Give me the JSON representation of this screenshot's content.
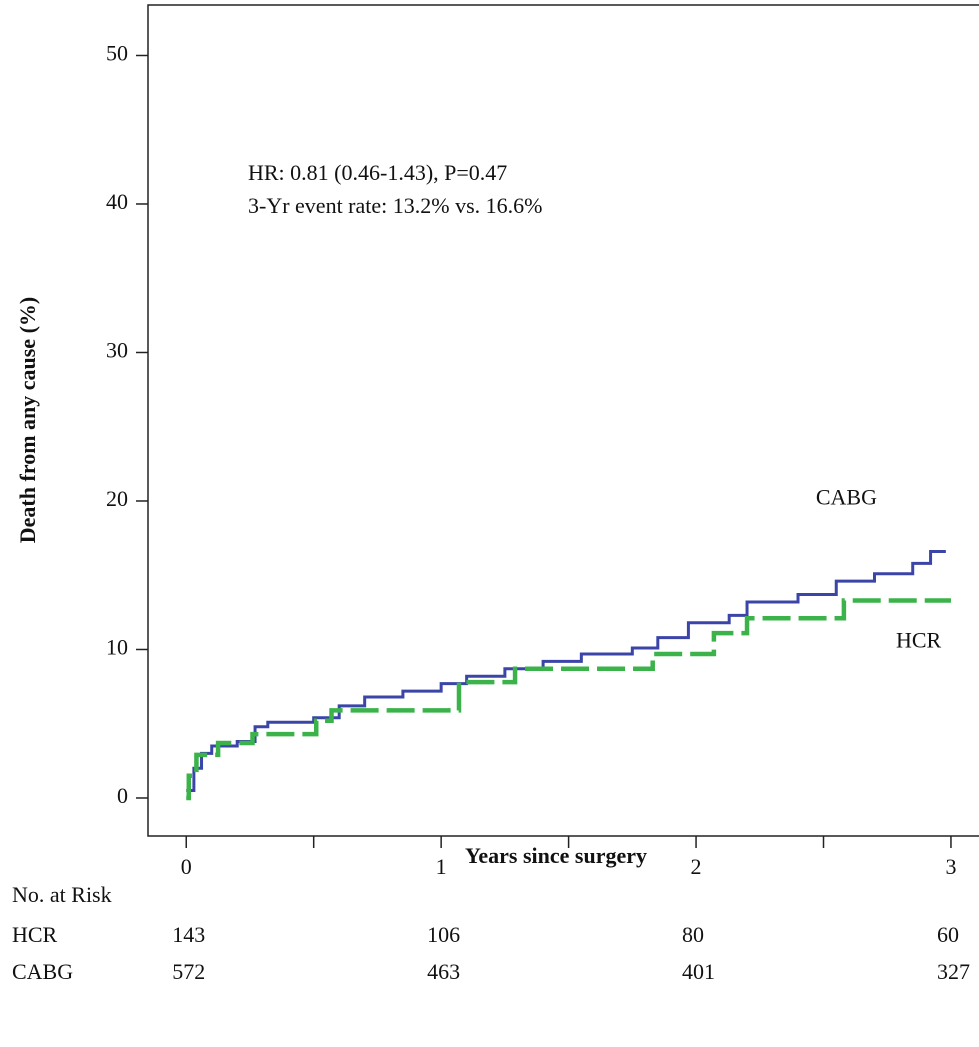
{
  "chart_data": {
    "type": "step",
    "y_label": "Death from any cause (%)",
    "x_label": "Years since surgery",
    "annotations": [
      "HR: 0.81 (0.46-1.43), P=0.47",
      "3-Yr event rate: 13.2% vs. 16.6%"
    ],
    "xlim": [
      -0.15,
      3.11
    ],
    "ylim": [
      -2.56,
      53.4
    ],
    "xticks": [
      0,
      1,
      2,
      3
    ],
    "xminor_ticks": [
      0.5,
      1.5,
      2.5
    ],
    "yticks": [
      0,
      10,
      20,
      30,
      40,
      50
    ],
    "series": [
      {
        "name": "CABG",
        "color": "#3b45a8",
        "dash": false,
        "x": [
          0,
          0.03,
          0.06,
          0.1,
          0.2,
          0.27,
          0.32,
          0.5,
          0.6,
          0.7,
          0.85,
          1.0,
          1.1,
          1.25,
          1.4,
          1.55,
          1.75,
          1.85,
          1.97,
          2.13,
          2.2,
          2.4,
          2.55,
          2.7,
          2.85,
          2.92,
          2.98
        ],
        "values": [
          0.5,
          2.0,
          3.0,
          3.5,
          3.8,
          4.8,
          5.1,
          5.4,
          6.2,
          6.8,
          7.2,
          7.7,
          8.2,
          8.7,
          9.2,
          9.7,
          10.1,
          10.8,
          11.8,
          12.3,
          13.2,
          13.7,
          14.6,
          15.1,
          15.8,
          16.6,
          16.6
        ]
      },
      {
        "name": "HCR",
        "color": "#3bb34a",
        "dash": true,
        "x": [
          0,
          0.01,
          0.04,
          0.125,
          0.26,
          0.51,
          0.57,
          1.07,
          1.29,
          1.83,
          2.07,
          2.2,
          2.58,
          3.0
        ],
        "values": [
          0,
          1.5,
          2.9,
          3.7,
          4.3,
          5.2,
          5.9,
          7.8,
          8.7,
          9.7,
          11.1,
          12.1,
          13.3,
          13.3
        ]
      }
    ],
    "risk_table": {
      "title": "No. at Risk",
      "rows": [
        {
          "name": "HCR",
          "values": [
            143,
            106,
            80,
            60
          ]
        },
        {
          "name": "CABG",
          "values": [
            572,
            463,
            401,
            327
          ]
        }
      ]
    }
  }
}
